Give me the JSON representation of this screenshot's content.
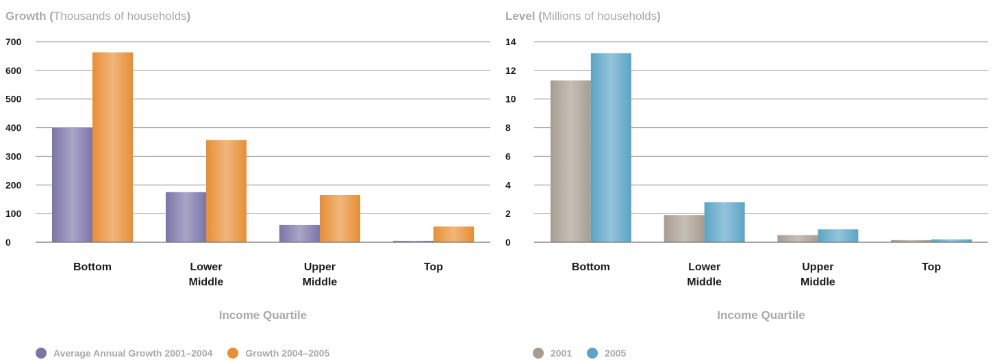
{
  "chart_data": [
    {
      "type": "bar",
      "title": "Growth",
      "subtitle": "(Thousands of households)",
      "xlabel": "Income Quartile",
      "ylabel": "",
      "categories": [
        "Bottom",
        "Lower Middle",
        "Upper Middle",
        "Top"
      ],
      "ylim": [
        0,
        700
      ],
      "yticks": [
        0,
        100,
        200,
        300,
        400,
        500,
        600,
        700
      ],
      "grid": true,
      "legend_position": "bottom-left",
      "series": [
        {
          "name": "Average Annual Growth 2001–2004",
          "color": "#7b75a8",
          "values": [
            400,
            175,
            60,
            5
          ]
        },
        {
          "name": "Growth 2004–2005",
          "color": "#e88e34",
          "values": [
            663,
            357,
            165,
            55
          ]
        }
      ]
    },
    {
      "type": "bar",
      "title": "Level",
      "subtitle": "(Millions of households)",
      "xlabel": "Income Quartile",
      "ylabel": "",
      "categories": [
        "Bottom",
        "Lower Middle",
        "Upper Middle",
        "Top"
      ],
      "ylim": [
        0,
        14
      ],
      "yticks": [
        0,
        2,
        4,
        6,
        8,
        10,
        12,
        14
      ],
      "grid": true,
      "legend_position": "bottom-left",
      "series": [
        {
          "name": "2001",
          "color": "#a89c90",
          "values": [
            11.3,
            1.9,
            0.5,
            0.15
          ]
        },
        {
          "name": "2005",
          "color": "#5aa4c6",
          "values": [
            13.2,
            2.8,
            0.9,
            0.2
          ]
        }
      ]
    }
  ]
}
